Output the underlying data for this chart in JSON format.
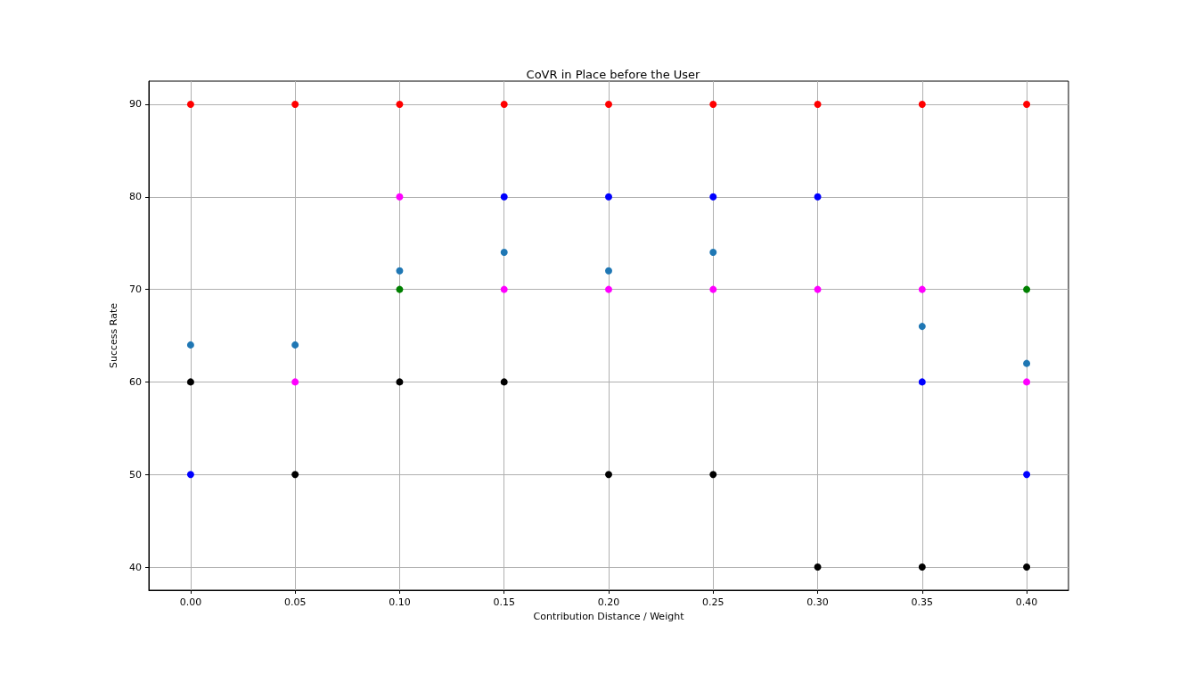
{
  "chart_data": {
    "type": "scatter",
    "title": "CoVR in Place before the User",
    "xlabel": "Contribution Distance / Weight",
    "ylabel": "Success Rate",
    "series": [
      {
        "color": "#1f77b4",
        "x": [
          0,
          0.05,
          0.1,
          0.15,
          0.2,
          0.25,
          0.35,
          0.4
        ],
        "values": [
          64,
          64,
          72,
          74,
          72,
          74,
          66,
          62
        ]
      },
      {
        "color": "#008000",
        "x": [
          0.1,
          0.4
        ],
        "values": [
          70,
          70
        ]
      },
      {
        "color": "#0000ff",
        "x": [
          0,
          0.15,
          0.2,
          0.25,
          0.3,
          0.35,
          0.4
        ],
        "values": [
          50,
          80,
          80,
          80,
          80,
          60,
          50
        ]
      },
      {
        "color": "#ff00ff",
        "x": [
          0.05,
          0.1,
          0.15,
          0.2,
          0.25,
          0.3,
          0.35,
          0.4
        ],
        "values": [
          60,
          80,
          70,
          70,
          70,
          70,
          70,
          60
        ]
      },
      {
        "color": "#000000",
        "x": [
          0,
          0.05,
          0.1,
          0.15,
          0.2,
          0.25,
          0.3,
          0.35,
          0.4
        ],
        "values": [
          60,
          50,
          60,
          60,
          50,
          50,
          40,
          40,
          40
        ]
      },
      {
        "color": "#ff0000",
        "x": [
          0,
          0.05,
          0.1,
          0.15,
          0.2,
          0.25,
          0.3,
          0.35,
          0.4
        ],
        "values": [
          90,
          90,
          90,
          90,
          90,
          90,
          90,
          90,
          90
        ]
      }
    ],
    "xlim": [
      -0.02,
      0.42
    ],
    "xticks": [
      {
        "value": 0,
        "label": "0.00"
      },
      {
        "value": 0.05,
        "label": "0.05"
      },
      {
        "value": 0.1,
        "label": "0.10"
      },
      {
        "value": 0.15,
        "label": "0.15"
      },
      {
        "value": 0.2,
        "label": "0.20"
      },
      {
        "value": 0.25,
        "label": "0.25"
      },
      {
        "value": 0.3,
        "label": "0.30"
      },
      {
        "value": 0.35,
        "label": "0.35"
      },
      {
        "value": 0.4,
        "label": "0.40"
      }
    ],
    "ylim": [
      37.5,
      92.5
    ],
    "yticks": [
      40,
      50,
      60,
      70,
      80,
      90
    ],
    "grid": true,
    "marker": "circle"
  }
}
